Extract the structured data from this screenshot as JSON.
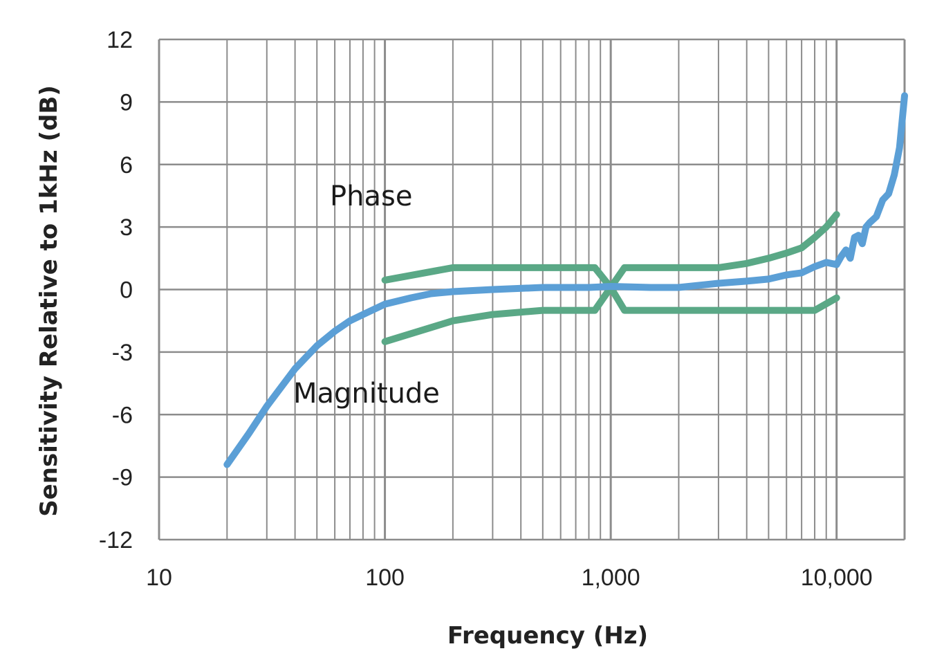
{
  "chart_data": {
    "type": "line",
    "title": "",
    "xlabel": "Frequency (Hz)",
    "ylabel": "Sensitivity Relative to 1kHz (dB)",
    "xscale": "log",
    "xlim": [
      10,
      20000
    ],
    "ylim": [
      -12,
      12
    ],
    "grid": true,
    "x_tick_labels": [
      {
        "value": 10,
        "label": "10"
      },
      {
        "value": 100,
        "label": "100"
      },
      {
        "value": 1000,
        "label": "1,000"
      },
      {
        "value": 10000,
        "label": "10,000"
      }
    ],
    "y_tick_labels": [
      {
        "value": 12,
        "label": "12"
      },
      {
        "value": 9,
        "label": "9"
      },
      {
        "value": 6,
        "label": "6"
      },
      {
        "value": 3,
        "label": "3"
      },
      {
        "value": 0,
        "label": "0"
      },
      {
        "value": -3,
        "label": "-3"
      },
      {
        "value": -6,
        "label": "-6"
      },
      {
        "value": -9,
        "label": "-9"
      },
      {
        "value": -12,
        "label": "-12"
      }
    ],
    "annotations": {
      "phase": "Phase",
      "magnitude": "Magnitude"
    },
    "colors": {
      "magnitude": "#5b9fd6",
      "phase": "#5aa886",
      "grid": "#8c8c8c"
    },
    "series": [
      {
        "name": "Magnitude",
        "points": [
          [
            20,
            -8.4
          ],
          [
            25,
            -6.9
          ],
          [
            30,
            -5.6
          ],
          [
            40,
            -3.8
          ],
          [
            50,
            -2.7
          ],
          [
            60,
            -2.0
          ],
          [
            70,
            -1.5
          ],
          [
            80,
            -1.2
          ],
          [
            100,
            -0.7
          ],
          [
            130,
            -0.4
          ],
          [
            160,
            -0.2
          ],
          [
            200,
            -0.1
          ],
          [
            300,
            0.0
          ],
          [
            500,
            0.1
          ],
          [
            800,
            0.1
          ],
          [
            1000,
            0.15
          ],
          [
            1500,
            0.1
          ],
          [
            2000,
            0.1
          ],
          [
            3000,
            0.3
          ],
          [
            4000,
            0.4
          ],
          [
            5000,
            0.5
          ],
          [
            6000,
            0.7
          ],
          [
            7000,
            0.8
          ],
          [
            8000,
            1.1
          ],
          [
            9000,
            1.3
          ],
          [
            10000,
            1.2
          ],
          [
            10500,
            1.6
          ],
          [
            11000,
            1.9
          ],
          [
            11500,
            1.5
          ],
          [
            12000,
            2.5
          ],
          [
            12500,
            2.6
          ],
          [
            13000,
            2.2
          ],
          [
            13500,
            3.0
          ],
          [
            14000,
            3.2
          ],
          [
            15000,
            3.5
          ],
          [
            16000,
            4.3
          ],
          [
            17000,
            4.6
          ],
          [
            18000,
            5.5
          ],
          [
            19000,
            6.8
          ],
          [
            20000,
            9.3
          ]
        ]
      },
      {
        "name": "Phase upper limit",
        "points": [
          [
            100,
            0.45
          ],
          [
            200,
            1.05
          ],
          [
            400,
            1.05
          ],
          [
            850,
            1.05
          ],
          [
            1000,
            0.1
          ],
          [
            1150,
            1.05
          ],
          [
            2000,
            1.05
          ],
          [
            3000,
            1.05
          ],
          [
            4000,
            1.25
          ],
          [
            5000,
            1.5
          ],
          [
            6000,
            1.75
          ],
          [
            7000,
            2.0
          ],
          [
            8000,
            2.5
          ],
          [
            9000,
            3.0
          ],
          [
            10000,
            3.6
          ]
        ]
      },
      {
        "name": "Phase lower limit",
        "points": [
          [
            100,
            -2.5
          ],
          [
            200,
            -1.5
          ],
          [
            300,
            -1.2
          ],
          [
            500,
            -1.0
          ],
          [
            850,
            -1.0
          ],
          [
            1000,
            0.1
          ],
          [
            1150,
            -1.0
          ],
          [
            2000,
            -1.0
          ],
          [
            3000,
            -1.0
          ],
          [
            5000,
            -1.0
          ],
          [
            8000,
            -1.0
          ],
          [
            10000,
            -0.4
          ]
        ]
      }
    ]
  }
}
